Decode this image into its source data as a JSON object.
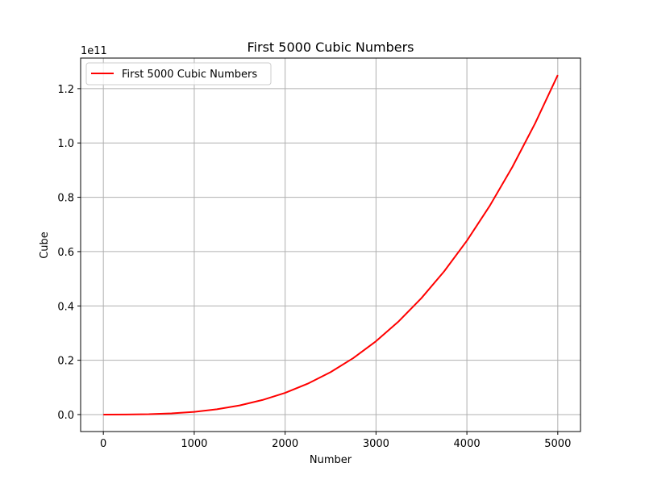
{
  "chart_data": {
    "type": "line",
    "title": "First 5000 Cubic Numbers",
    "xlabel": "Number",
    "ylabel": "Cube",
    "y_offset_label": "1e11",
    "xlim": [
      -250,
      5250
    ],
    "ylim": [
      -6250000000,
      131250000000
    ],
    "x_ticks": [
      0,
      1000,
      2000,
      3000,
      4000,
      5000
    ],
    "x_tick_labels": [
      "0",
      "1000",
      "2000",
      "3000",
      "4000",
      "5000"
    ],
    "y_ticks": [
      0,
      20000000000,
      40000000000,
      60000000000,
      80000000000,
      100000000000,
      120000000000
    ],
    "y_tick_labels": [
      "0.0",
      "0.2",
      "0.4",
      "0.6",
      "0.8",
      "1.0",
      "1.2"
    ],
    "grid": true,
    "legend": {
      "position": "upper-left",
      "entries": [
        "First 5000 Cubic Numbers"
      ]
    },
    "series": [
      {
        "name": "First 5000 Cubic Numbers",
        "color": "#ff0000",
        "formula": "y = x^3",
        "x": [
          1,
          250,
          500,
          750,
          1000,
          1250,
          1500,
          1750,
          2000,
          2250,
          2500,
          2750,
          3000,
          3250,
          3500,
          3750,
          4000,
          4250,
          4500,
          4750,
          5000
        ],
        "y": [
          1,
          15625000,
          125000000,
          421875000,
          1000000000,
          1953125000,
          3375000000,
          5359375000,
          8000000000,
          11390625000,
          15625000000,
          20796875000,
          27000000000,
          34328125000,
          42875000000,
          52734375000,
          64000000000,
          76765625000,
          91125000000,
          107171875000,
          125000000000
        ]
      }
    ]
  }
}
